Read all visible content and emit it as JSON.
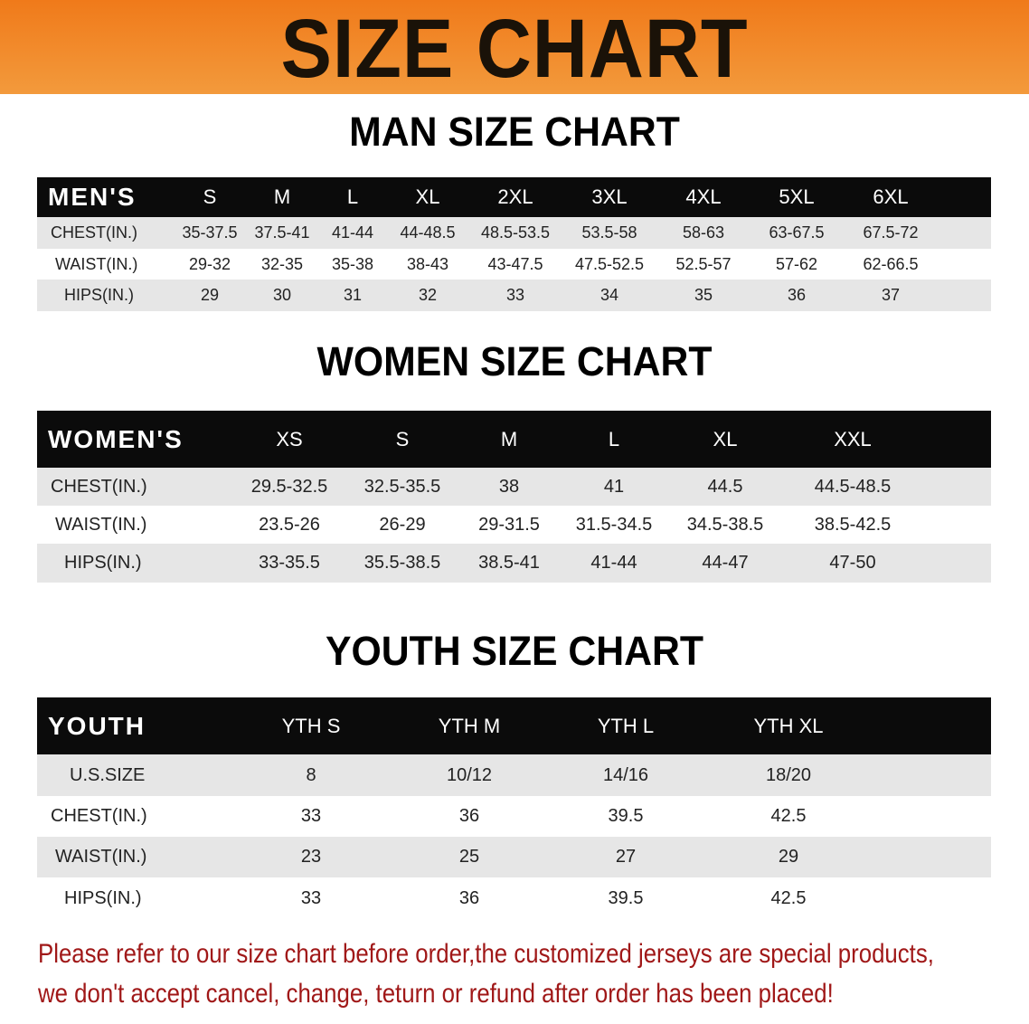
{
  "banner": {
    "title": "SIZE CHART",
    "color": "#f08020"
  },
  "men": {
    "title": "MAN SIZE CHART",
    "header": "MEN'S",
    "sizes": [
      "S",
      "M",
      "L",
      "XL",
      "2XL",
      "3XL",
      "4XL",
      "5XL",
      "6XL"
    ],
    "rows": [
      {
        "label": "CHEST(IN.)",
        "values": [
          "35-37.5",
          "37.5-41",
          "41-44",
          "44-48.5",
          "48.5-53.5",
          "53.5-58",
          "58-63",
          "63-67.5",
          "67.5-72"
        ]
      },
      {
        "label": "WAIST(IN.)",
        "values": [
          "29-32",
          "32-35",
          "35-38",
          "38-43",
          "43-47.5",
          "47.5-52.5",
          "52.5-57",
          "57-62",
          "62-66.5"
        ]
      },
      {
        "label": "HIPS(IN.)",
        "values": [
          "29",
          "30",
          "31",
          "32",
          "33",
          "34",
          "35",
          "36",
          "37"
        ]
      }
    ]
  },
  "women": {
    "title": "WOMEN SIZE CHART",
    "header": "WOMEN'S",
    "sizes": [
      "XS",
      "S",
      "M",
      "L",
      "XL",
      "XXL"
    ],
    "rows": [
      {
        "label": "CHEST(IN.)",
        "values": [
          "29.5-32.5",
          "32.5-35.5",
          "38",
          "41",
          "44.5",
          "44.5-48.5"
        ]
      },
      {
        "label": "WAIST(IN.)",
        "values": [
          "23.5-26",
          "26-29",
          "29-31.5",
          "31.5-34.5",
          "34.5-38.5",
          "38.5-42.5"
        ]
      },
      {
        "label": "HIPS(IN.)",
        "values": [
          "33-35.5",
          "35.5-38.5",
          "38.5-41",
          "41-44",
          "44-47",
          "47-50"
        ]
      }
    ]
  },
  "youth": {
    "title": "YOUTH SIZE CHART",
    "header": "YOUTH",
    "sizes": [
      "YTH S",
      "YTH M",
      "YTH L",
      "YTH XL"
    ],
    "rows": [
      {
        "label": "U.S.SIZE",
        "values": [
          "8",
          "10/12",
          "14/16",
          "18/20"
        ]
      },
      {
        "label": "CHEST(IN.)",
        "values": [
          "33",
          "36",
          "39.5",
          "42.5"
        ]
      },
      {
        "label": "WAIST(IN.)",
        "values": [
          "23",
          "25",
          "27",
          "29"
        ]
      },
      {
        "label": "HIPS(IN.)",
        "values": [
          "33",
          "36",
          "39.5",
          "42.5"
        ]
      }
    ]
  },
  "notice": {
    "line1": "Please refer to our size chart before order,the customized jerseys are special products,",
    "line2": "we don't accept cancel, change, teturn or refund after order has been placed!",
    "color": "#a01818"
  }
}
